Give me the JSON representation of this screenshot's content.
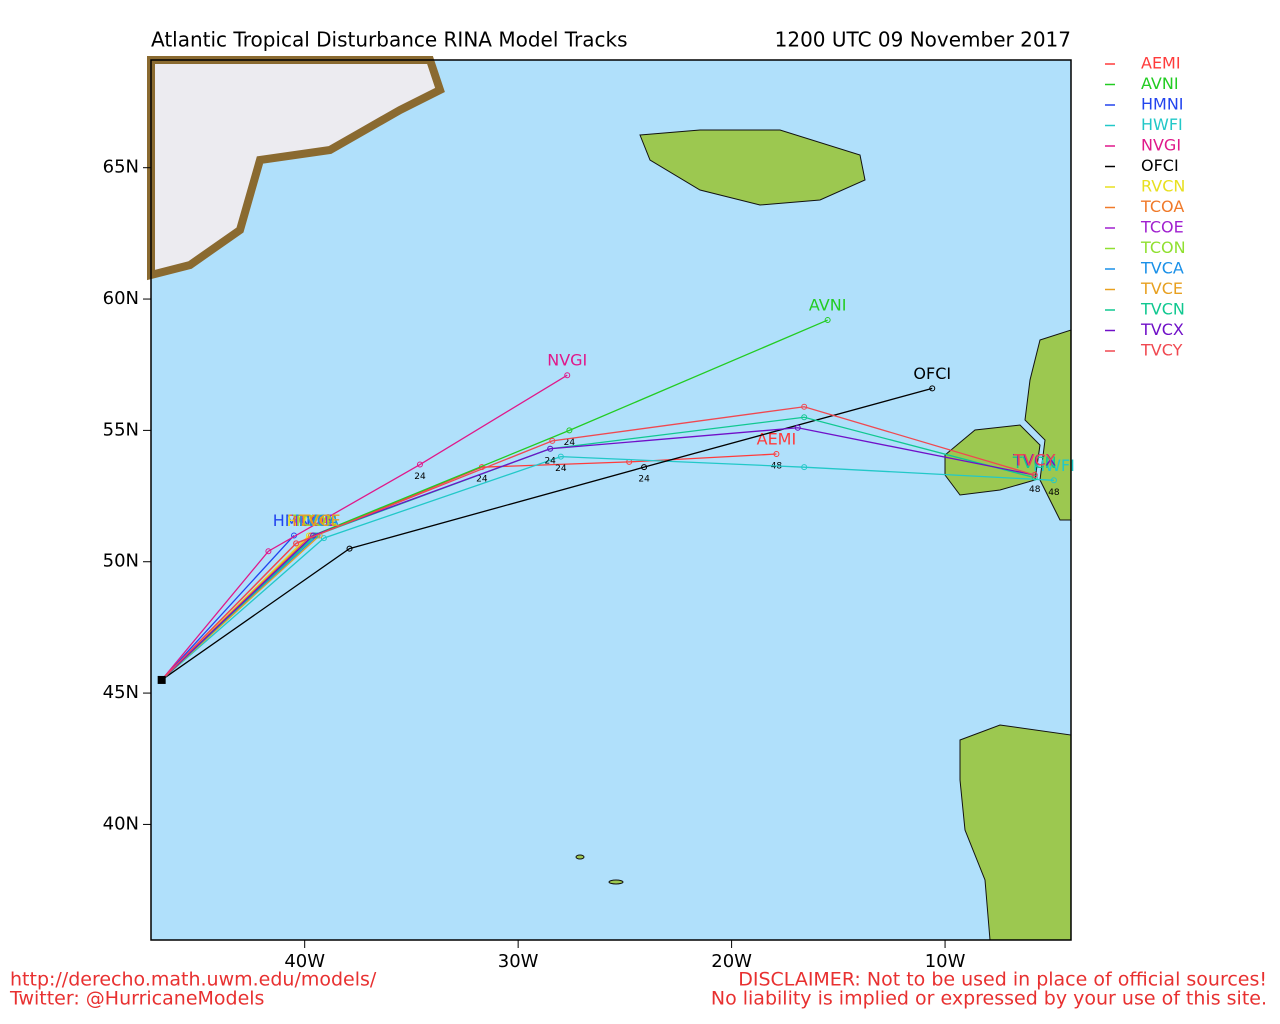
{
  "chart_data": {
    "type": "line",
    "title": "Atlantic Tropical Disturbance RINA Model Tracks",
    "subtitle": "1200 UTC 09 November 2017",
    "xlim": [
      -47.2,
      -4.1
    ],
    "ylim": [
      35.6,
      69.1
    ],
    "xticks": [
      {
        "value": -40,
        "label": "40W"
      },
      {
        "value": -30,
        "label": "30W"
      },
      {
        "value": -20,
        "label": "20W"
      },
      {
        "value": -10,
        "label": "10W"
      }
    ],
    "yticks": [
      {
        "value": 40,
        "label": "40N"
      },
      {
        "value": 45,
        "label": "45N"
      },
      {
        "value": 50,
        "label": "50N"
      },
      {
        "value": 55,
        "label": "55N"
      },
      {
        "value": 60,
        "label": "60N"
      },
      {
        "value": 65,
        "label": "65N"
      }
    ],
    "series": [
      {
        "name": "AEMI",
        "color": "#ff3b3b",
        "x": [
          -46.7,
          -40.4,
          -31.7,
          -24.8,
          -17.9
        ],
        "values": [
          45.5,
          50.7,
          53.6,
          53.8,
          54.1
        ],
        "point_labels": [
          null,
          null,
          "24",
          null,
          "48"
        ]
      },
      {
        "name": "AVNI",
        "color": "#22cc22",
        "x": [
          -46.7,
          -39.6,
          -27.6,
          -15.5
        ],
        "values": [
          45.5,
          51.0,
          55.0,
          59.2
        ],
        "point_labels": [
          null,
          null,
          "24",
          null
        ]
      },
      {
        "name": "HMNI",
        "color": "#2244ee",
        "x": [
          -46.7,
          -40.5
        ],
        "values": [
          45.5,
          51.0
        ],
        "point_labels": [
          null,
          null
        ]
      },
      {
        "name": "HWFI",
        "color": "#22c8c8",
        "x": [
          -46.7,
          -39.1,
          -28.0,
          -16.6,
          -4.9
        ],
        "values": [
          45.5,
          50.9,
          54.0,
          53.6,
          53.1
        ],
        "point_labels": [
          null,
          null,
          "24",
          null,
          "48"
        ]
      },
      {
        "name": "NVGI",
        "color": "#e0188a",
        "x": [
          -46.7,
          -41.7,
          -38.9,
          -34.6,
          -27.7
        ],
        "values": [
          45.5,
          50.4,
          51.7,
          53.7,
          57.1
        ],
        "point_labels": [
          null,
          null,
          null,
          "24",
          null
        ]
      },
      {
        "name": "OFCI",
        "color": "#000000",
        "x": [
          -46.7,
          -37.9,
          -24.1,
          -10.6
        ],
        "values": [
          45.5,
          50.5,
          53.6,
          56.6
        ],
        "point_labels": [
          null,
          null,
          "24",
          null
        ]
      },
      {
        "name": "RVCN",
        "color": "#e8e020",
        "x": [
          -46.7,
          -39.8
        ],
        "values": [
          45.5,
          51.0
        ],
        "point_labels": [
          null,
          null
        ]
      },
      {
        "name": "TCOA",
        "color": "#f07a2a",
        "x": [
          -46.7,
          -39.7
        ],
        "values": [
          45.5,
          51.0
        ],
        "point_labels": [
          null,
          null
        ]
      },
      {
        "name": "TCOE",
        "color": "#a020d0",
        "x": [
          -46.7,
          -39.6
        ],
        "values": [
          45.5,
          51.0
        ],
        "point_labels": [
          null,
          null
        ]
      },
      {
        "name": "TCON",
        "color": "#90e030",
        "x": [
          -46.7,
          -39.5
        ],
        "values": [
          45.5,
          51.0
        ],
        "point_labels": [
          null,
          null
        ]
      },
      {
        "name": "TVCA",
        "color": "#1a90e8",
        "x": [
          -46.7,
          -39.4
        ],
        "values": [
          45.5,
          51.0
        ],
        "point_labels": [
          null,
          null
        ]
      },
      {
        "name": "TVCE",
        "color": "#e8a020",
        "x": [
          -46.7,
          -39.3
        ],
        "values": [
          45.5,
          51.0
        ],
        "point_labels": [
          null,
          null
        ]
      },
      {
        "name": "TVCN",
        "color": "#10c890",
        "x": [
          -46.7,
          -39.5,
          -28.5,
          -16.6,
          -5.8
        ],
        "values": [
          45.5,
          51.0,
          54.3,
          55.5,
          53.2
        ],
        "point_labels": [
          null,
          null,
          "24",
          null,
          "48"
        ]
      },
      {
        "name": "TVCX",
        "color": "#7010c8",
        "x": [
          -46.7,
          -39.6,
          -28.5,
          -16.9,
          -5.8
        ],
        "values": [
          45.5,
          51.0,
          54.3,
          55.1,
          53.3
        ],
        "point_labels": [
          null,
          null,
          null,
          null,
          null
        ]
      },
      {
        "name": "TVCY",
        "color": "#f04850",
        "x": [
          -46.7,
          -40.4,
          -28.4,
          -16.6,
          -5.8
        ],
        "values": [
          45.5,
          50.7,
          54.6,
          55.9,
          53.3
        ],
        "point_labels": [
          null,
          null,
          null,
          null,
          null
        ]
      }
    ]
  },
  "footer": {
    "url": "http://derecho.math.uwm.edu/models/",
    "twitter": "Twitter: @HurricaneModels",
    "disclaimer": "DISCLAIMER: Not to be used in place of official sources!",
    "liability": "No liability is implied or expressed by your use of this site."
  }
}
